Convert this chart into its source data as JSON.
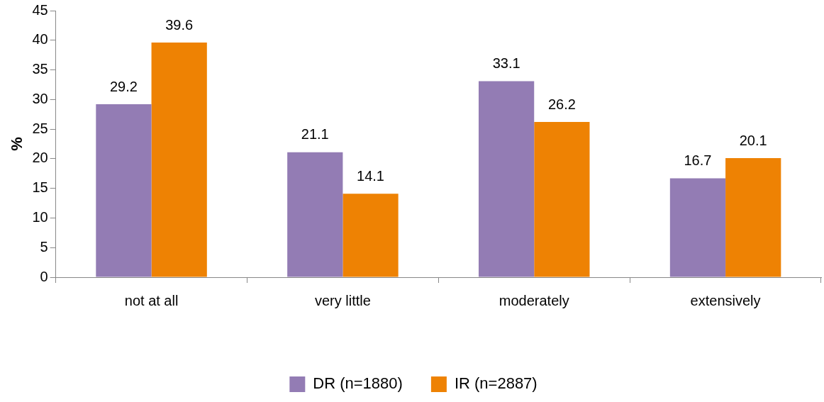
{
  "chart_data": {
    "type": "bar",
    "ylabel": "%",
    "categories": [
      "not at all",
      "very little",
      "moderately",
      "extensively"
    ],
    "series": [
      {
        "name": "DR (n=1880)",
        "color": "#937cb4",
        "values": [
          29.2,
          21.1,
          33.1,
          16.7
        ]
      },
      {
        "name": "IR (n=2887)",
        "color": "#ee8203",
        "values": [
          39.6,
          14.1,
          26.2,
          20.1
        ]
      }
    ],
    "ylim": [
      0,
      45
    ],
    "yticks": [
      0,
      5,
      10,
      15,
      20,
      25,
      30,
      35,
      40,
      45
    ],
    "grid": false,
    "legend": "bottom",
    "data_labels": true
  }
}
